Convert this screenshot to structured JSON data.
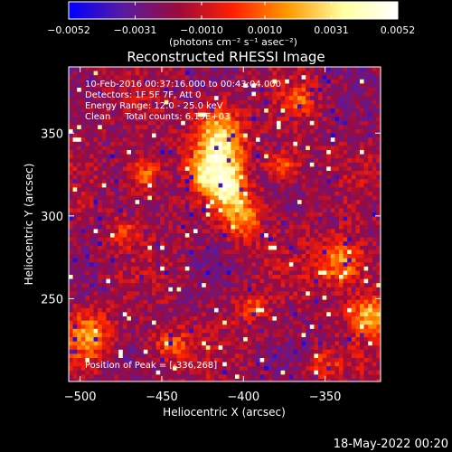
{
  "chart_data": {
    "type": "heatmap",
    "title": "Reconstructed RHESSI Image",
    "xlabel": "Heliocentric X (arcsec)",
    "ylabel": "Heliocentric Y (arcsec)",
    "xlim": [
      -507,
      -316
    ],
    "ylim": [
      200,
      390
    ],
    "x_ticks": [
      -500,
      -450,
      -400,
      -350
    ],
    "y_ticks": [
      250,
      300,
      350
    ],
    "colorbar": {
      "unit_label": "(photons cm⁻² s⁻¹ asec⁻²)",
      "range": [
        -0.0052,
        0.0052
      ],
      "tick_values": [
        -0.0052,
        -0.0031,
        -0.001,
        0.001,
        0.0031,
        0.0052
      ],
      "tick_labels": [
        "−0.0052",
        "−0.0031",
        "−0.0010",
        "0.0010",
        "0.0031",
        "0.0052"
      ],
      "colormap": [
        "#0000ff",
        "#5a1aa0",
        "#9b0a3c",
        "#ff2000",
        "#ff9a00",
        "#ffffa0",
        "#ffffff"
      ]
    },
    "annotations": [
      "10-Feb-2016 00:37:16.000 to 00:43:04.000",
      "Detectors: 1F 5F 7F, Att 0",
      "Energy Range: 12.0 - 25.0 keV",
      "Clean     Total counts: 6.19E+03"
    ],
    "peak_label": "Position of Peak = [-336,268]",
    "grid": false
  },
  "timestamp": "18-May-2022 00:20"
}
